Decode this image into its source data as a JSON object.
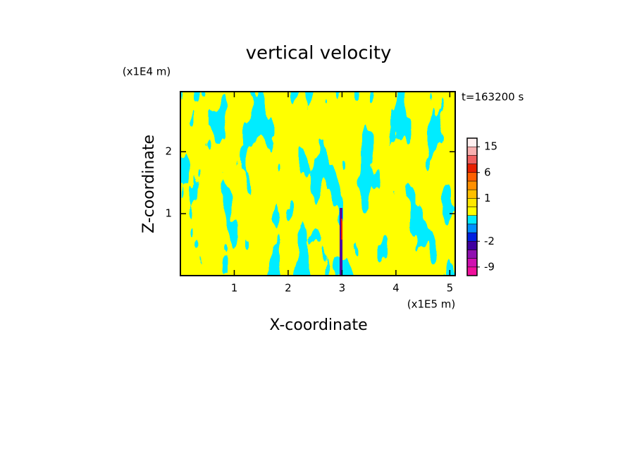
{
  "chart_data": {
    "type": "contour",
    "title": "vertical velocity",
    "xlabel": "X-coordinate",
    "ylabel": "Z-coordinate",
    "xunit": "(x1E5 m)",
    "yunit": "(x1E4 m)",
    "time_label": "t=163200 s",
    "xlim": [
      0,
      5.1
    ],
    "ylim": [
      0,
      2.97
    ],
    "xticks": [
      1,
      2,
      3,
      4,
      5
    ],
    "yticks": [
      1,
      2
    ],
    "colorbar": {
      "levels": [
        -12,
        -9,
        -6,
        -4,
        -2,
        -1,
        -0.5,
        0,
        0.5,
        1,
        2,
        4,
        6,
        9,
        12,
        15,
        20
      ],
      "colors": [
        "#f0109c",
        "#d010b0",
        "#9010b0",
        "#4000a0",
        "#0020e0",
        "#0090ff",
        "#00ecff",
        "#ffff00",
        "#ffe800",
        "#ffc000",
        "#ff9000",
        "#ff6000",
        "#e82000",
        "#f06060",
        "#f8b0b0",
        "#fff0f0"
      ],
      "ticks": [
        15,
        6,
        1,
        -2,
        -9
      ]
    }
  }
}
